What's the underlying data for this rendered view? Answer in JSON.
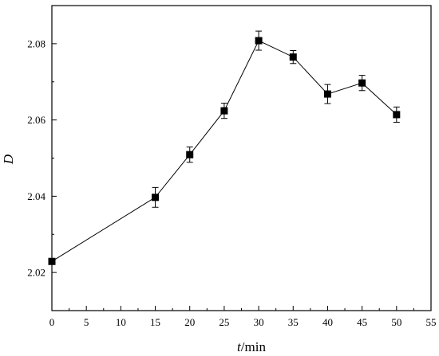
{
  "chart_data": {
    "type": "line",
    "xlabel_italic": "t",
    "xlabel_unit": "/min",
    "ylabel": "D",
    "xlim": [
      0,
      55
    ],
    "ylim": [
      2.01,
      2.09
    ],
    "x_ticks": [
      0,
      5,
      10,
      15,
      20,
      25,
      30,
      35,
      40,
      45,
      50,
      55
    ],
    "y_ticks": [
      2.02,
      2.04,
      2.06,
      2.08
    ],
    "x_tick_labels": [
      "0",
      "5",
      "10",
      "15",
      "20",
      "25",
      "30",
      "35",
      "40",
      "45",
      "50",
      "55"
    ],
    "y_tick_labels": [
      "2.02",
      "2.04",
      "2.06",
      "2.08"
    ],
    "grid": false,
    "marker": "square",
    "series": [
      {
        "x": [
          0,
          15,
          20,
          25,
          30,
          35,
          40,
          45,
          50
        ],
        "y": [
          2.0229,
          2.0397,
          2.0509,
          2.0624,
          2.0808,
          2.0765,
          2.0668,
          2.0697,
          2.0614
        ],
        "error": [
          0.0006,
          0.0026,
          0.002,
          0.002,
          0.0025,
          0.0017,
          0.0025,
          0.002,
          0.002
        ]
      }
    ]
  }
}
